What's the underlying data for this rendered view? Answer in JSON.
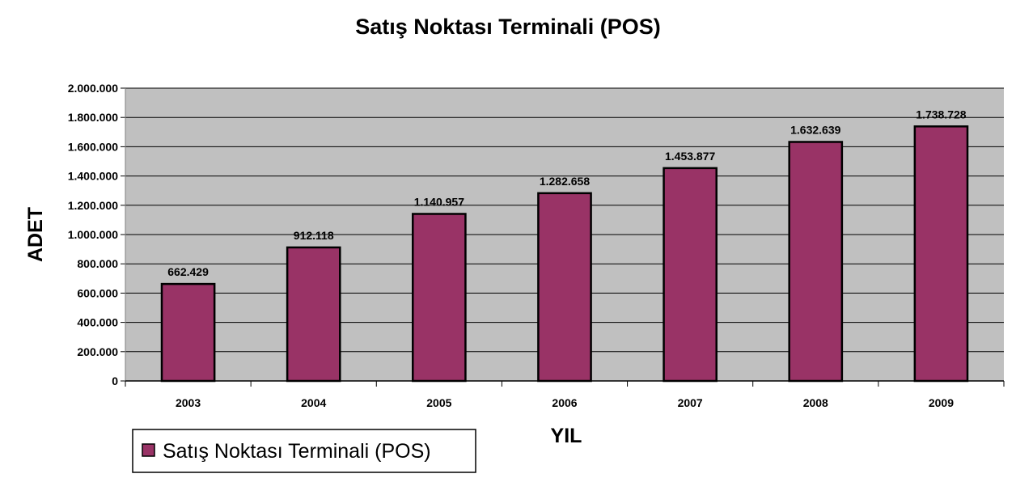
{
  "chart_data": {
    "type": "bar",
    "title": "Satış Noktası Terminali (POS)",
    "xlabel": "YIL",
    "ylabel": "ADET",
    "categories": [
      "2003",
      "2004",
      "2005",
      "2006",
      "2007",
      "2008",
      "2009"
    ],
    "series": [
      {
        "name": "Satış Noktası Terminali (POS)",
        "values": [
          662429,
          912118,
          1140957,
          1282658,
          1453877,
          1632639,
          1738728
        ],
        "value_labels": [
          "662.429",
          "912.118",
          "1.140.957",
          "1.282.658",
          "1.453.877",
          "1.632.639",
          "1.738.728"
        ]
      }
    ],
    "ylim": [
      0,
      2000000
    ],
    "yticks": [
      0,
      200000,
      400000,
      600000,
      800000,
      1000000,
      1200000,
      1400000,
      1600000,
      1800000,
      2000000
    ],
    "ytick_labels": [
      "0",
      "200.000",
      "400.000",
      "600.000",
      "800.000",
      "1.000.000",
      "1.200.000",
      "1.400.000",
      "1.600.000",
      "1.800.000",
      "2.000.000"
    ],
    "grid": "horizontal",
    "legend_position": "bottom-left",
    "colors": {
      "bar": "#993366",
      "plot_background": "#c0c0c0",
      "gridline": "#000000",
      "bar_outline": "#000000"
    }
  }
}
